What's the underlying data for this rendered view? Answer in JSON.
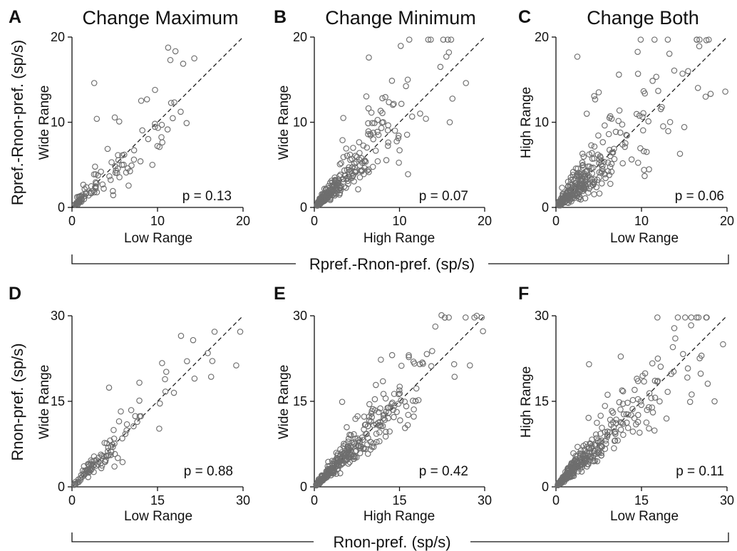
{
  "shared_labels": {
    "top_row_ylabel": "Rpref.-Rnon-pref. (sp/s)",
    "top_row_xlabel": "Rpref.-Rnon-pref. (sp/s)",
    "bottom_row_ylabel": "Rnon-pref. (sp/s)",
    "bottom_row_xlabel": "Rnon-pref. (sp/s)"
  },
  "colors": {
    "marker": "#6e6e6e",
    "axis": "#111111",
    "background": "#ffffff"
  },
  "chart_data": [
    {
      "panel": "A",
      "title": "Change Maximum",
      "type": "scatter",
      "xlabel": "Low Range",
      "ylabel": "Wide Range",
      "xlim": [
        0,
        20
      ],
      "ylim": [
        0,
        20
      ],
      "xticks": [
        0,
        10,
        20
      ],
      "yticks": [
        0,
        10,
        20
      ],
      "annotation": "p = 0.13",
      "diagonal": true,
      "seed": 11,
      "n_points": 110,
      "x_scale": 4.6,
      "spread": 0.32,
      "max": 14.5,
      "anchor_points": [
        [
          2.6,
          14.6
        ],
        [
          11.5,
          17.3
        ],
        [
          14.3,
          17.5
        ],
        [
          10.5,
          9.7
        ],
        [
          13.4,
          9.9
        ],
        [
          9.4,
          5.0
        ],
        [
          2.9,
          10.4
        ]
      ]
    },
    {
      "panel": "B",
      "title": "Change Minimum",
      "type": "scatter",
      "xlabel": "High Range",
      "ylabel": "Wide Range",
      "xlim": [
        0,
        20
      ],
      "ylim": [
        0,
        20
      ],
      "xticks": [
        0,
        10,
        20
      ],
      "yticks": [
        0,
        10,
        20
      ],
      "annotation": "p = 0.07",
      "diagonal": true,
      "seed": 23,
      "n_points": 280,
      "x_scale": 3.5,
      "spread": 0.3,
      "max": 17.5,
      "anchor_points": [
        [
          6.4,
          17.6
        ],
        [
          15.8,
          18.2
        ],
        [
          15.5,
          17.7
        ],
        [
          14.8,
          16.5
        ],
        [
          17.8,
          14.6
        ],
        [
          15.9,
          10.0
        ],
        [
          11.0,
          3.9
        ],
        [
          3.4,
          10.5
        ]
      ]
    },
    {
      "panel": "C",
      "title": "Change Both",
      "type": "scatter",
      "xlabel": "Low Range",
      "ylabel": "High Range",
      "xlim": [
        0,
        20
      ],
      "ylim": [
        0,
        20
      ],
      "xticks": [
        0,
        10,
        20
      ],
      "yticks": [
        0,
        10,
        20
      ],
      "annotation": "p = 0.06",
      "diagonal": true,
      "seed": 37,
      "n_points": 300,
      "x_scale": 3.8,
      "spread": 0.42,
      "max": 19.5,
      "anchor_points": [
        [
          2.5,
          17.7
        ],
        [
          19.8,
          13.6
        ],
        [
          14.8,
          15.7
        ],
        [
          17.5,
          13.0
        ],
        [
          14.5,
          6.3
        ],
        [
          10.3,
          4.4
        ],
        [
          3.6,
          11.0
        ]
      ]
    },
    {
      "panel": "D",
      "type": "scatter",
      "xlabel": "Low Range",
      "ylabel": "Wide Range",
      "xlim": [
        0,
        30
      ],
      "ylim": [
        0,
        30
      ],
      "xticks": [
        0,
        15,
        30
      ],
      "yticks": [
        0,
        15,
        30
      ],
      "annotation": "p = 0.88",
      "diagonal": true,
      "seed": 5,
      "n_points": 105,
      "x_scale": 8.0,
      "spread": 0.25,
      "max": 29.5,
      "anchor_points": [
        [
          25.0,
          27.2
        ],
        [
          29.5,
          27.2
        ],
        [
          28.8,
          21.3
        ],
        [
          24.4,
          19.3
        ],
        [
          15.8,
          21.7
        ],
        [
          6.5,
          17.4
        ],
        [
          15.3,
          10.2
        ]
      ]
    },
    {
      "panel": "E",
      "type": "scatter",
      "xlabel": "High Range",
      "ylabel": "Wide Range",
      "xlim": [
        0,
        30
      ],
      "ylim": [
        0,
        30
      ],
      "xticks": [
        0,
        15,
        30
      ],
      "yticks": [
        0,
        15,
        30
      ],
      "annotation": "p = 0.42",
      "diagonal": true,
      "seed": 71,
      "n_points": 320,
      "x_scale": 7.5,
      "spread": 0.22,
      "max": 29.5,
      "anchor_points": [
        [
          22.4,
          30.1
        ],
        [
          28.6,
          30.0
        ],
        [
          29.7,
          27.3
        ],
        [
          27.4,
          21.3
        ],
        [
          24.7,
          19.3
        ],
        [
          13.7,
          23.1
        ],
        [
          4.9,
          14.9
        ]
      ]
    },
    {
      "panel": "F",
      "type": "scatter",
      "xlabel": "Low Range",
      "ylabel": "High Range",
      "xlim": [
        0,
        30
      ],
      "ylim": [
        0,
        30
      ],
      "xticks": [
        0,
        15,
        30
      ],
      "yticks": [
        0,
        15,
        30
      ],
      "annotation": "p = 0.11",
      "diagonal": true,
      "seed": 97,
      "n_points": 340,
      "x_scale": 7.0,
      "spread": 0.24,
      "max": 29.5,
      "anchor_points": [
        [
          25.0,
          29.7
        ],
        [
          29.3,
          25.0
        ],
        [
          23.8,
          16.2
        ],
        [
          5.8,
          21.5
        ],
        [
          20.5,
          24.5
        ],
        [
          20.2,
          19.8
        ]
      ]
    }
  ]
}
